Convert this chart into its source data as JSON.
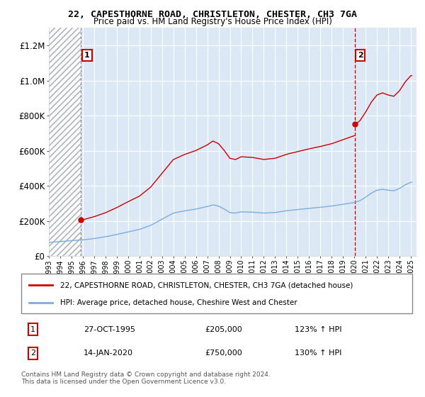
{
  "title": "22, CAPESTHORNE ROAD, CHRISTLETON, CHESTER, CH3 7GA",
  "subtitle": "Price paid vs. HM Land Registry's House Price Index (HPI)",
  "legend_line1": "22, CAPESTHORNE ROAD, CHRISTLETON, CHESTER, CH3 7GA (detached house)",
  "legend_line2": "HPI: Average price, detached house, Cheshire West and Chester",
  "footnote": "Contains HM Land Registry data © Crown copyright and database right 2024.\nThis data is licensed under the Open Government Licence v3.0.",
  "transaction1_date": "27-OCT-1995",
  "transaction1_price": "£205,000",
  "transaction1_hpi": "123% ↑ HPI",
  "transaction2_date": "14-JAN-2020",
  "transaction2_price": "£750,000",
  "transaction2_hpi": "130% ↑ HPI",
  "house_color": "#cc0000",
  "hpi_color": "#7aade0",
  "plot_bg_color": "#dce8f5",
  "ylim": [
    0,
    1300000
  ],
  "yticks": [
    0,
    200000,
    400000,
    600000,
    800000,
    1000000,
    1200000
  ],
  "t1_year": 1995.83,
  "t2_year": 2020.08,
  "t1_price": 205000,
  "t2_price": 750000
}
